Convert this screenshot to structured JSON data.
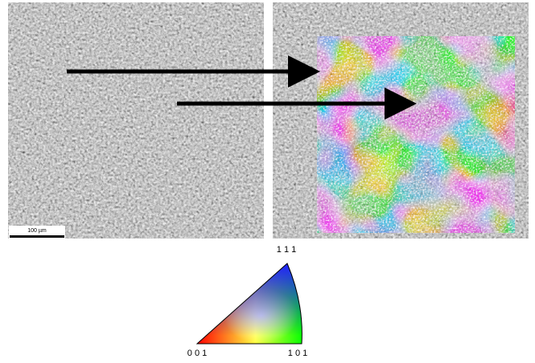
{
  "scale_bar": {
    "label": "100 µm"
  },
  "color_key": {
    "top": "1 1 1",
    "bottom_left": "0 0 1",
    "bottom_right": "1 0 1"
  }
}
